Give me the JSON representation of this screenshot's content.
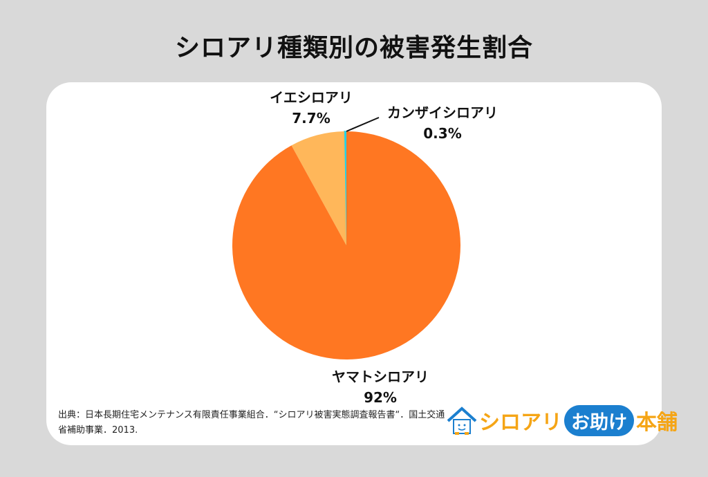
{
  "title": "シロアリ種類別の被害発生割合",
  "chart_data": {
    "type": "pie",
    "title": "シロアリ種類別の被害発生割合",
    "start": "12 o'clock, clockwise",
    "slices": [
      {
        "label": "ヤマトシロアリ",
        "value": 92,
        "value_label": "92%",
        "color": "#ff7722"
      },
      {
        "label": "イエシロアリ",
        "value": 7.7,
        "value_label": "7.7%",
        "color": "#ffb75a"
      },
      {
        "label": "カンザイシロアリ",
        "value": 0.3,
        "value_label": "0.3%",
        "color": "#22d3e8"
      }
    ]
  },
  "source": "出典：日本長期住宅メンテナンス有限責任事業組合．“シロアリ被害実態調査報告書“．国土交通省補助事業．2013.",
  "logo": {
    "part1": "シロアリ",
    "part2": "お助け",
    "part3": "本舗",
    "icon": "house-mascot-icon"
  },
  "colors": {
    "background": "#d9d9d9",
    "card": "#ffffff"
  }
}
